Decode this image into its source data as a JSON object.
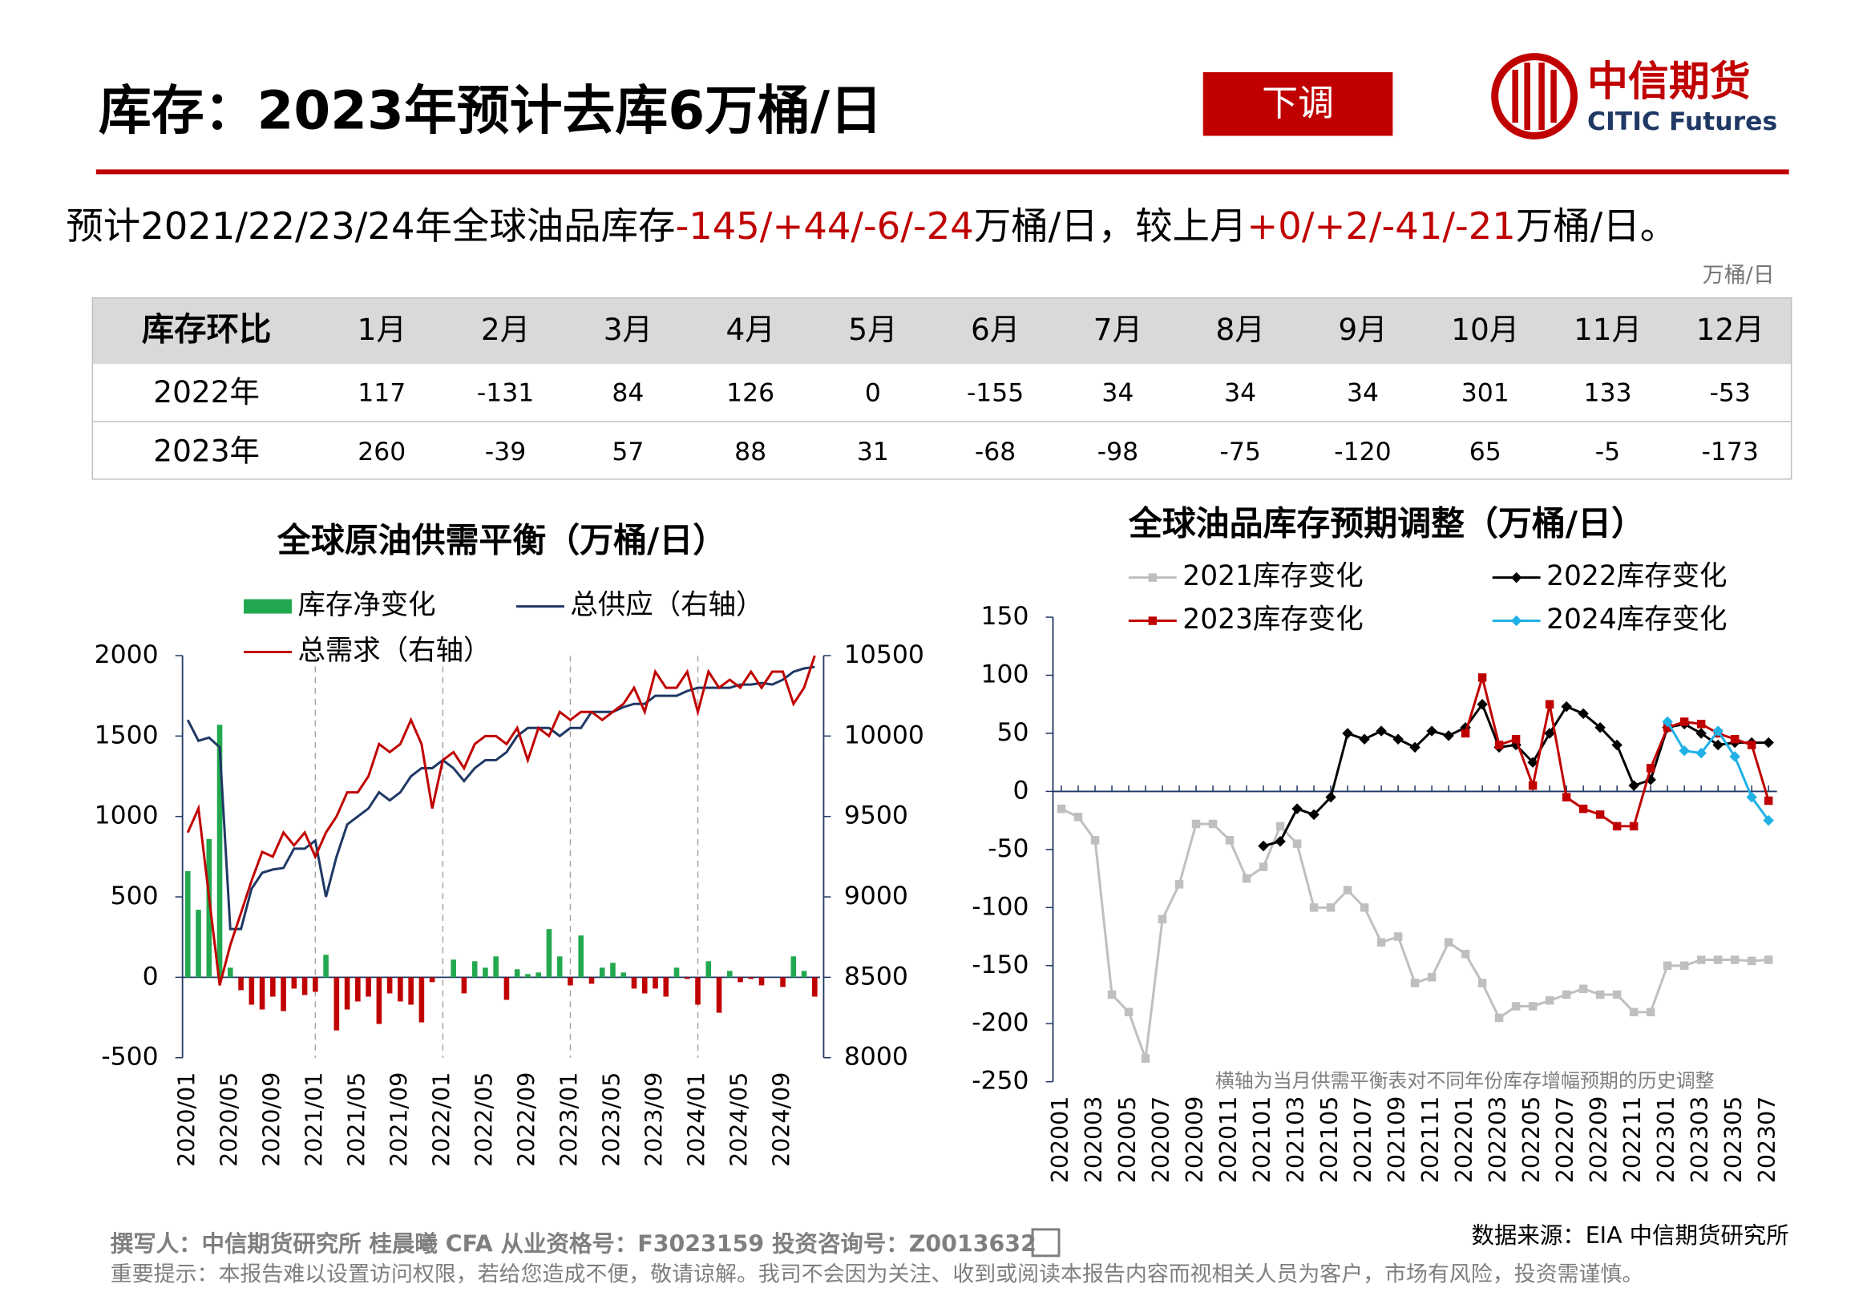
{
  "header": {
    "title": "库存：2023年预计去库6万桶/日",
    "tag": "下调",
    "logo_cn": "中信期货",
    "logo_en": "CITIC Futures"
  },
  "summary": [
    {
      "text": "预计2021/22/23/24年全球油品库存",
      "color": "#000000"
    },
    {
      "text": "-145/+44/-6/-24",
      "color": "#c00000"
    },
    {
      "text": "万桶/日，较上月",
      "color": "#000000"
    },
    {
      "text": "+0/+2/-41/-21",
      "color": "#c00000"
    },
    {
      "text": "万桶/日。",
      "color": "#000000"
    }
  ],
  "unit": "万桶/日",
  "table": {
    "header": [
      "库存环比",
      "1月",
      "2月",
      "3月",
      "4月",
      "5月",
      "6月",
      "7月",
      "8月",
      "9月",
      "10月",
      "11月",
      "12月"
    ],
    "rows": [
      [
        "2022年",
        117,
        -131,
        84,
        126,
        0,
        -155,
        34,
        34,
        34,
        301,
        133,
        -53
      ],
      [
        "2023年",
        260,
        -39,
        57,
        88,
        31,
        -68,
        -98,
        -75,
        -120,
        65,
        -5,
        -173
      ]
    ]
  },
  "chart_data": [
    {
      "type": "bar-line",
      "title": "全球原油供需平衡（万桶/日）",
      "categories": [
        "2020/01",
        null,
        null,
        null,
        "2020/05",
        null,
        null,
        null,
        "2020/09",
        null,
        null,
        null,
        "2021/01",
        null,
        null,
        null,
        "2021/05",
        null,
        null,
        null,
        "2021/09",
        null,
        null,
        null,
        "2022/01",
        null,
        null,
        null,
        "2022/05",
        null,
        null,
        null,
        "2022/09",
        null,
        null,
        null,
        "2023/01",
        null,
        null,
        null,
        "2023/05",
        null,
        null,
        null,
        "2023/09",
        null,
        null,
        null,
        "2024/01",
        null,
        null,
        null,
        "2024/05",
        null,
        null,
        null,
        "2024/09",
        null,
        null,
        null
      ],
      "series": [
        {
          "name": "库存净变化",
          "type": "bar",
          "color": "#22a94f",
          "negative_color": "#c00000",
          "values": [
            660,
            420,
            860,
            1570,
            60,
            -80,
            -170,
            -200,
            -120,
            -210,
            -70,
            -110,
            -90,
            140,
            -330,
            -200,
            -150,
            -120,
            -290,
            -100,
            -150,
            -170,
            -280,
            -30,
            0,
            110,
            -100,
            100,
            60,
            130,
            -140,
            50,
            20,
            30,
            300,
            130,
            -50,
            260,
            -40,
            60,
            90,
            30,
            -70,
            -100,
            -70,
            -120,
            60,
            -10,
            -170,
            100,
            -220,
            40,
            -30,
            -10,
            -50,
            0,
            -60,
            130,
            40,
            -120
          ]
        },
        {
          "name": "总供应（右轴）",
          "type": "line",
          "axis": "y2",
          "color": "#1f3864",
          "values": [
            10100,
            9970,
            9990,
            9930,
            8800,
            8800,
            9050,
            9150,
            9170,
            9180,
            9300,
            9300,
            9350,
            9000,
            9250,
            9450,
            9500,
            9550,
            9650,
            9600,
            9650,
            9750,
            9800,
            9800,
            9850,
            9800,
            9720,
            9800,
            9850,
            9850,
            9900,
            10000,
            10050,
            10050,
            10050,
            10000,
            10050,
            10050,
            10150,
            10150,
            10150,
            10180,
            10200,
            10200,
            10250,
            10250,
            10250,
            10280,
            10300,
            10300,
            10300,
            10300,
            10320,
            10320,
            10330,
            10320,
            10350,
            10400,
            10420,
            10430
          ]
        },
        {
          "name": "总需求（右轴）",
          "type": "line",
          "axis": "y2",
          "color": "#c00000",
          "values": [
            9400,
            9550,
            9000,
            8450,
            8700,
            8900,
            9100,
            9280,
            9250,
            9400,
            9320,
            9400,
            9250,
            9400,
            9500,
            9650,
            9650,
            9750,
            9950,
            9900,
            9950,
            10100,
            9950,
            9550,
            9850,
            9900,
            9800,
            9950,
            10000,
            10000,
            9950,
            10050,
            9850,
            10050,
            10000,
            10150,
            10100,
            10150,
            10150,
            10100,
            10150,
            10200,
            10300,
            10150,
            10400,
            10300,
            10300,
            10400,
            10150,
            10400,
            10300,
            10350,
            10300,
            10400,
            10300,
            10400,
            10400,
            10200,
            10300,
            10500
          ]
        }
      ],
      "ylim": [
        -500,
        2000
      ],
      "yticks": [
        -500,
        0,
        500,
        1000,
        1500,
        2000
      ],
      "y2lim": [
        8000,
        10500
      ],
      "y2ticks": [
        8000,
        8500,
        9000,
        9500,
        10000,
        10500
      ]
    },
    {
      "type": "line",
      "title": "全球油品库存预期调整（万桶/日）",
      "note": "横轴为当月供需平衡表对不同年份库存增幅预期的历史调整",
      "categories": [
        "202001",
        null,
        "202003",
        null,
        "202005",
        null,
        "202007",
        null,
        "202009",
        null,
        "202011",
        null,
        "202101",
        null,
        "202103",
        null,
        "202105",
        null,
        "202107",
        null,
        "202109",
        null,
        "202111",
        null,
        "202201",
        null,
        "202203",
        null,
        "202205",
        null,
        "202207",
        null,
        "202209",
        null,
        "202211",
        null,
        "202301",
        null,
        "202303",
        null,
        "202305",
        null,
        "202307"
      ],
      "series": [
        {
          "name": "2021库存变化",
          "color": "#bfbfbf",
          "marker": "square",
          "values": [
            -15,
            -22,
            -42,
            -175,
            -190,
            -230,
            -110,
            -80,
            -28,
            -28,
            -42,
            -75,
            -65,
            -30,
            -45,
            -100,
            -100,
            -85,
            -100,
            -130,
            -125,
            -165,
            -160,
            -130,
            -140,
            -165,
            -195,
            -185,
            -185,
            -180,
            -175,
            -170,
            -175,
            -175,
            -190,
            -190,
            -150,
            -150,
            -145,
            -145,
            -145,
            -146,
            -145
          ]
        },
        {
          "name": "2022库存变化",
          "color": "#000000",
          "marker": "diamond",
          "values": [
            null,
            null,
            null,
            null,
            null,
            null,
            null,
            null,
            null,
            null,
            null,
            null,
            -47,
            -43,
            -15,
            -20,
            -5,
            50,
            45,
            52,
            45,
            38,
            52,
            48,
            55,
            75,
            38,
            40,
            25,
            50,
            73,
            67,
            55,
            40,
            5,
            10,
            55,
            58,
            50,
            40,
            42,
            42,
            42
          ]
        },
        {
          "name": "2023库存变化",
          "color": "#c00000",
          "marker": "square",
          "values": [
            null,
            null,
            null,
            null,
            null,
            null,
            null,
            null,
            null,
            null,
            null,
            null,
            null,
            null,
            null,
            null,
            null,
            null,
            null,
            null,
            null,
            null,
            null,
            null,
            50,
            98,
            40,
            45,
            5,
            75,
            -5,
            -15,
            -20,
            -30,
            -30,
            20,
            55,
            60,
            58,
            50,
            45,
            40,
            -8
          ]
        },
        {
          "name": "2024库存变化",
          "color": "#1fb1e6",
          "marker": "diamond",
          "values": [
            null,
            null,
            null,
            null,
            null,
            null,
            null,
            null,
            null,
            null,
            null,
            null,
            null,
            null,
            null,
            null,
            null,
            null,
            null,
            null,
            null,
            null,
            null,
            null,
            null,
            null,
            null,
            null,
            null,
            null,
            null,
            null,
            null,
            null,
            null,
            null,
            60,
            35,
            33,
            52,
            30,
            -5,
            -25
          ]
        }
      ],
      "ylim": [
        -250,
        150
      ],
      "yticks": [
        -250,
        -200,
        -150,
        -100,
        -50,
        0,
        50,
        100,
        150
      ]
    }
  ],
  "footer": {
    "author": "撰写人：中信期货研究所 桂晨曦 CFA 从业资格号：F3023159 投资咨询号：Z0013632",
    "source": "数据来源：EIA 中信期货研究所",
    "disclaimer": "重要提示：本报告难以设置访问权限，若给您造成不便，敬请谅解。我司不会因为关注、收到或阅读本报告内容而视相关人员为客户，市场有风险，投资需谨慎。"
  }
}
